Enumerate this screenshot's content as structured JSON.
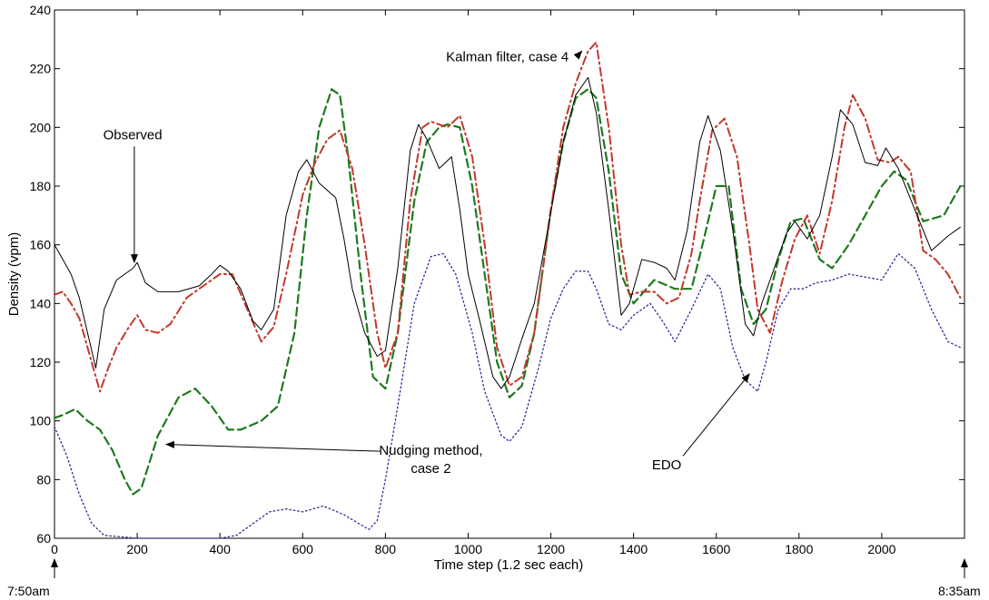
{
  "chart_data": {
    "type": "line",
    "title": "",
    "xlabel": "Time step (1.2 sec each)",
    "ylabel": "Density (vpm)",
    "xlim": [
      0,
      2200
    ],
    "ylim": [
      60,
      240
    ],
    "x_ticks": [
      0,
      200,
      400,
      600,
      800,
      1000,
      1200,
      1400,
      1600,
      1800,
      2000
    ],
    "y_ticks": [
      60,
      80,
      100,
      120,
      140,
      160,
      180,
      200,
      220,
      240
    ],
    "grid": false,
    "legend": "none",
    "series": [
      {
        "name": "Observed",
        "color": "#000000",
        "style": "solid",
        "x": [
          0,
          20,
          40,
          60,
          80,
          100,
          120,
          150,
          190,
          200,
          220,
          250,
          300,
          350,
          380,
          400,
          420,
          450,
          480,
          500,
          530,
          560,
          590,
          610,
          640,
          680,
          700,
          720,
          750,
          780,
          800,
          830,
          860,
          880,
          900,
          930,
          960,
          980,
          1000,
          1030,
          1060,
          1080,
          1100,
          1130,
          1160,
          1200,
          1230,
          1260,
          1290,
          1310,
          1340,
          1370,
          1390,
          1420,
          1450,
          1480,
          1500,
          1530,
          1560,
          1580,
          1610,
          1640,
          1670,
          1690,
          1710,
          1740,
          1770,
          1790,
          1820,
          1850,
          1880,
          1900,
          1930,
          1960,
          1990,
          2010,
          2040,
          2080,
          2120,
          2160,
          2190
        ],
        "values": [
          160,
          155,
          150,
          142,
          130,
          118,
          138,
          148,
          152,
          154,
          147,
          144,
          144,
          146,
          150,
          153,
          151,
          145,
          134,
          131,
          138,
          170,
          185,
          189,
          181,
          176,
          162,
          145,
          130,
          122,
          124,
          152,
          192,
          201,
          196,
          186,
          190,
          172,
          150,
          133,
          115,
          111,
          115,
          128,
          140,
          171,
          195,
          211,
          217,
          205,
          172,
          136,
          140,
          155,
          154,
          152,
          148,
          165,
          195,
          204,
          192,
          165,
          133,
          129,
          140,
          152,
          164,
          168,
          162,
          170,
          190,
          206,
          201,
          188,
          187,
          193,
          186,
          172,
          158,
          163,
          166
        ]
      },
      {
        "name": "Kalman filter, case 4",
        "color": "#c0392b",
        "style": "dash-dot",
        "x": [
          0,
          20,
          40,
          60,
          80,
          100,
          110,
          130,
          150,
          180,
          200,
          220,
          250,
          280,
          320,
          360,
          400,
          430,
          460,
          500,
          530,
          560,
          600,
          630,
          660,
          690,
          720,
          750,
          780,
          800,
          830,
          860,
          890,
          910,
          950,
          980,
          1010,
          1040,
          1070,
          1100,
          1130,
          1160,
          1200,
          1230,
          1260,
          1290,
          1310,
          1340,
          1370,
          1390,
          1420,
          1450,
          1480,
          1510,
          1540,
          1560,
          1590,
          1620,
          1650,
          1680,
          1700,
          1730,
          1760,
          1790,
          1820,
          1850,
          1880,
          1910,
          1930,
          1960,
          1990,
          2020,
          2040,
          2070,
          2100,
          2130,
          2160,
          2190
        ],
        "values": [
          143,
          144,
          140,
          135,
          125,
          115,
          110,
          118,
          125,
          132,
          136,
          131,
          130,
          133,
          142,
          146,
          150,
          150,
          140,
          127,
          132,
          150,
          177,
          188,
          196,
          199,
          186,
          160,
          130,
          118,
          130,
          175,
          200,
          202,
          200,
          204,
          190,
          160,
          125,
          112,
          115,
          130,
          172,
          200,
          215,
          226,
          229,
          200,
          160,
          143,
          144,
          144,
          140,
          142,
          157,
          175,
          199,
          203,
          190,
          160,
          138,
          130,
          148,
          162,
          170,
          157,
          175,
          200,
          211,
          203,
          189,
          188,
          190,
          185,
          158,
          155,
          150,
          142
        ]
      },
      {
        "name": "Nudging method, case 2",
        "color": "#1e7a1e",
        "style": "dashed",
        "x": [
          0,
          20,
          50,
          80,
          110,
          140,
          170,
          190,
          210,
          250,
          300,
          340,
          380,
          420,
          450,
          500,
          540,
          580,
          610,
          640,
          670,
          690,
          710,
          740,
          770,
          800,
          830,
          870,
          900,
          930,
          950,
          980,
          1010,
          1040,
          1070,
          1100,
          1130,
          1160,
          1200,
          1230,
          1260,
          1290,
          1310,
          1340,
          1370,
          1400,
          1450,
          1500,
          1540,
          1570,
          1600,
          1630,
          1660,
          1690,
          1720,
          1750,
          1780,
          1810,
          1850,
          1880,
          1920,
          1960,
          2000,
          2030,
          2060,
          2100,
          2150,
          2190
        ],
        "values": [
          101,
          102,
          104,
          100,
          97,
          90,
          80,
          75,
          77,
          95,
          108,
          111,
          105,
          97,
          97,
          100,
          105,
          130,
          170,
          200,
          213,
          211,
          190,
          150,
          115,
          111,
          130,
          175,
          195,
          200,
          201,
          200,
          180,
          150,
          120,
          108,
          112,
          130,
          172,
          195,
          210,
          213,
          210,
          185,
          150,
          140,
          148,
          145,
          145,
          162,
          180,
          180,
          145,
          133,
          138,
          155,
          168,
          169,
          155,
          152,
          160,
          170,
          180,
          185,
          182,
          168,
          170,
          180
        ]
      },
      {
        "name": "EDO",
        "color": "#2a2a9a",
        "style": "dotted",
        "x": [
          0,
          30,
          60,
          90,
          120,
          200,
          300,
          400,
          440,
          480,
          520,
          560,
          600,
          650,
          700,
          760,
          780,
          800,
          830,
          870,
          910,
          940,
          970,
          1010,
          1040,
          1080,
          1100,
          1130,
          1170,
          1200,
          1230,
          1260,
          1290,
          1310,
          1340,
          1370,
          1400,
          1440,
          1470,
          1500,
          1540,
          1580,
          1610,
          1640,
          1670,
          1700,
          1720,
          1750,
          1780,
          1810,
          1840,
          1880,
          1920,
          1960,
          2000,
          2040,
          2080,
          2120,
          2160,
          2190
        ],
        "values": [
          98,
          88,
          75,
          65,
          61,
          60,
          60,
          60,
          61,
          65,
          69,
          70,
          69,
          71,
          68,
          63,
          66,
          80,
          105,
          140,
          156,
          157,
          150,
          130,
          110,
          95,
          93,
          98,
          118,
          135,
          145,
          151,
          151,
          145,
          133,
          131,
          136,
          140,
          134,
          127,
          138,
          150,
          145,
          125,
          114,
          110,
          120,
          138,
          145,
          145,
          147,
          148,
          150,
          149,
          148,
          157,
          152,
          138,
          127,
          125
        ]
      }
    ],
    "annotations": [
      {
        "label": "Observed",
        "text_x": 200,
        "text_y": 196,
        "arrow_to_x": 193,
        "arrow_to_y": 154
      },
      {
        "label": "Kalman filter, case 4",
        "text_x": 1095,
        "text_y": 224,
        "arrow_to_x": 1275,
        "arrow_to_y": 226
      },
      {
        "label": "Nudging method, case 2",
        "text_x": 1000,
        "text_y": 85,
        "arrow_to_x": 270,
        "arrow_to_y": 92
      },
      {
        "label": "EDO",
        "text_x": 1480,
        "text_y": 85,
        "arrow_to_x": 1680,
        "arrow_to_y": 116
      }
    ],
    "time_labels": {
      "start": "7:50am",
      "end": "8:35am"
    }
  }
}
